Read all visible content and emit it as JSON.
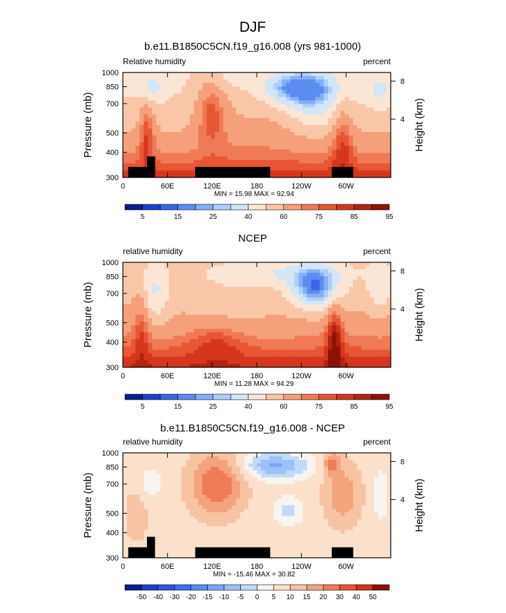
{
  "figure_title": "DJF",
  "chart_data": [
    {
      "type": "heatmap",
      "title": "b.e11.B1850C5CN.f19_g16.008 (yrs 981-1000)",
      "left_label": "Relative humidity",
      "right_label": "percent",
      "ylabel": "Pressure (mb)",
      "y2label": "Height (km)",
      "x_ticks": [
        "0",
        "60E",
        "120E",
        "180",
        "120W",
        "60W"
      ],
      "y_ticks": [
        "300",
        "400",
        "500",
        "700",
        "850",
        "1000"
      ],
      "y2_ticks": [
        "8",
        "4"
      ],
      "stats": "MIN = 15.98  MAX = 92.94",
      "colorbar_labels": [
        "5",
        "15",
        "25",
        "40",
        "60",
        "75",
        "85",
        "95"
      ],
      "colors": [
        "#0a1e8c",
        "#1c3fcf",
        "#3a67e6",
        "#5b8cf0",
        "#84aef5",
        "#aecff8",
        "#d3e6f8",
        "#fbe6d6",
        "#f9c7a8",
        "#f5a07a",
        "#ef7a55",
        "#e85634",
        "#d4371e",
        "#b4230f",
        "#8c1206"
      ],
      "ylim": [
        1000,
        300
      ],
      "xlim": [
        0,
        360
      ]
    },
    {
      "type": "heatmap",
      "title": "NCEP",
      "left_label": "relative humidity",
      "right_label": "percent",
      "ylabel": "Pressure (mb)",
      "y2label": "Height (km)",
      "x_ticks": [
        "0",
        "60E",
        "120E",
        "180",
        "120W",
        "60W"
      ],
      "y_ticks": [
        "300",
        "400",
        "500",
        "700",
        "850",
        "1000"
      ],
      "y2_ticks": [
        "8",
        "4"
      ],
      "stats": "MIN = 11.28  MAX = 94.29",
      "colorbar_labels": [
        "5",
        "15",
        "25",
        "40",
        "60",
        "75",
        "85",
        "95"
      ],
      "colors": [
        "#0a1e8c",
        "#1c3fcf",
        "#3a67e6",
        "#5b8cf0",
        "#84aef5",
        "#aecff8",
        "#d3e6f8",
        "#fbe6d6",
        "#f9c7a8",
        "#f5a07a",
        "#ef7a55",
        "#e85634",
        "#d4371e",
        "#b4230f",
        "#8c1206"
      ],
      "ylim": [
        1000,
        300
      ],
      "xlim": [
        0,
        360
      ]
    },
    {
      "type": "heatmap",
      "title": "b.e11.B1850C5CN.f19_g16.008 - NCEP",
      "left_label": "relative humidity",
      "right_label": "percent",
      "ylabel": "Pressure (mb)",
      "y2label": "Height (km)",
      "x_ticks": [
        "0",
        "60E",
        "120E",
        "180",
        "120W",
        "60W"
      ],
      "y_ticks": [
        "300",
        "400",
        "500",
        "700",
        "850",
        "1000"
      ],
      "y2_ticks": [
        "8",
        "4"
      ],
      "stats": "MIN = -15.46  MAX = 30.82",
      "colorbar_labels": [
        "-50",
        "-40",
        "-30",
        "-20",
        "-15",
        "-10",
        "-5",
        "0",
        "5",
        "10",
        "15",
        "20",
        "30",
        "40",
        "50"
      ],
      "colors": [
        "#0a1e8c",
        "#1c3fcf",
        "#2f57dc",
        "#3f6fe8",
        "#5b8cf0",
        "#7aa6f4",
        "#9cc0f7",
        "#c2daf9",
        "#f8f4f0",
        "#fbe0cc",
        "#f8c3a2",
        "#f4a37c",
        "#ef7c56",
        "#e55733",
        "#cf3518",
        "#8c1206"
      ],
      "ylim": [
        1000,
        300
      ],
      "xlim": [
        0,
        360
      ]
    }
  ]
}
